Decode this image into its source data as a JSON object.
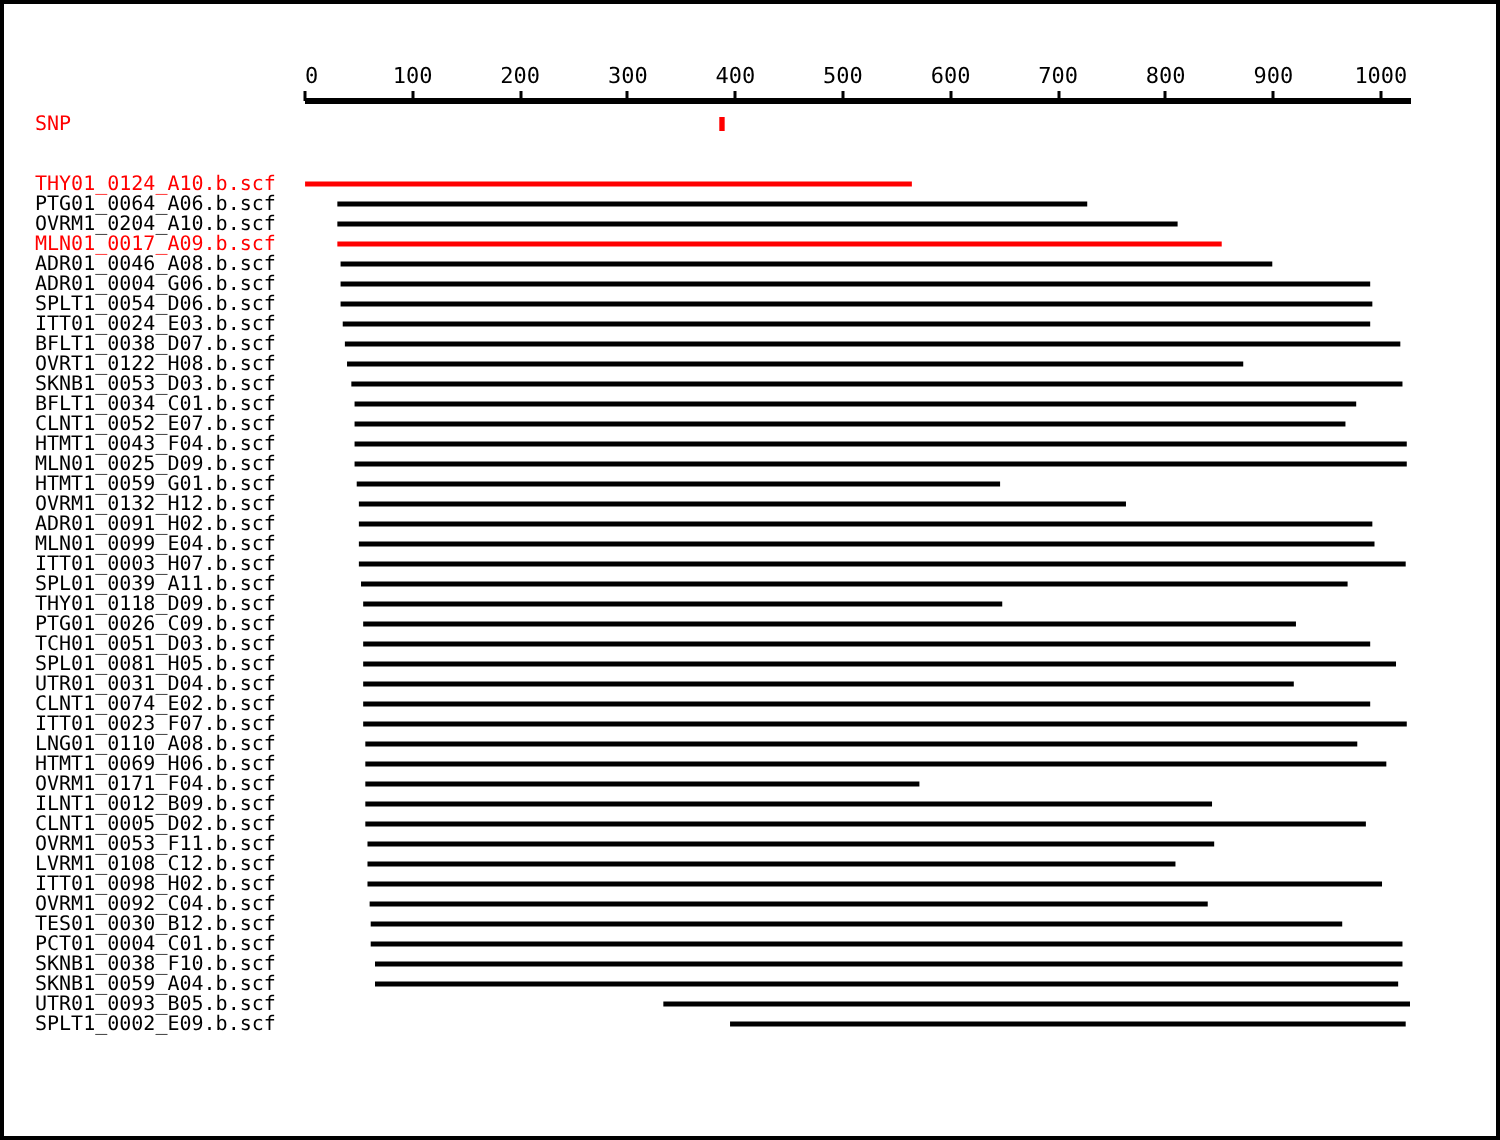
{
  "chart_data": {
    "type": "bar",
    "orientation": "horizontal",
    "categories": [
      "SNP",
      "THY01_0124_A10.b.scf",
      "PTG01_0064_A06.b.scf",
      "OVRM1_0204_A10.b.scf",
      "MLN01_0017_A09.b.scf",
      "ADR01_0046_A08.b.scf",
      "ADR01_0004_G06.b.scf",
      "SPLT1_0054_D06.b.scf",
      "ITT01_0024_E03.b.scf",
      "BFLT1_0038_D07.b.scf",
      "OVRT1_0122_H08.b.scf",
      "SKNB1_0053_D03.b.scf",
      "BFLT1_0034_C01.b.scf",
      "CLNT1_0052_E07.b.scf",
      "HTMT1_0043_F04.b.scf",
      "MLN01_0025_D09.b.scf",
      "HTMT1_0059_G01.b.scf",
      "OVRM1_0132_H12.b.scf",
      "ADR01_0091_H02.b.scf",
      "MLN01_0099_E04.b.scf",
      "ITT01_0003_H07.b.scf",
      "SPL01_0039_A11.b.scf",
      "THY01_0118_D09.b.scf",
      "PTG01_0026_C09.b.scf",
      "TCH01_0051_D03.b.scf",
      "SPL01_0081_H05.b.scf",
      "UTR01_0031_D04.b.scf",
      "CLNT1_0074_E02.b.scf",
      "ITT01_0023_F07.b.scf",
      "LNG01_0110_A08.b.scf",
      "HTMT1_0069_H06.b.scf",
      "OVRM1_0171_F04.b.scf",
      "ILNT1_0012_B09.b.scf",
      "CLNT1_0005_D02.b.scf",
      "OVRM1_0053_F11.b.scf",
      "LVRM1_0108_C12.b.scf",
      "ITT01_0098_H02.b.scf",
      "OVRM1_0092_C04.b.scf",
      "TES01_0030_B12.b.scf",
      "PCT01_0004_C01.b.scf",
      "SKNB1_0038_F10.b.scf",
      "SKNB1_0059_A04.b.scf",
      "UTR01_0093_B05.b.scf",
      "SPLT1_0002_E09.b.scf"
    ],
    "base": [
      386,
      1,
      31,
      31,
      31,
      34,
      34,
      34,
      36,
      38,
      40,
      44,
      47,
      47,
      47,
      47,
      49,
      51,
      51,
      51,
      51,
      53,
      55,
      55,
      55,
      55,
      55,
      55,
      55,
      57,
      57,
      57,
      57,
      57,
      59,
      59,
      59,
      61,
      62,
      62,
      66,
      66,
      334,
      396
    ],
    "values": [
      5,
      564,
      697,
      781,
      822,
      866,
      957,
      959,
      955,
      981,
      833,
      977,
      931,
      921,
      978,
      978,
      598,
      713,
      942,
      944,
      973,
      917,
      594,
      867,
      936,
      960,
      865,
      936,
      970,
      922,
      949,
      515,
      787,
      930,
      787,
      751,
      943,
      779,
      903,
      959,
      955,
      951,
      694,
      628
    ],
    "colors": [
      "#ff0000",
      "#ff0000",
      "#000000",
      "#000000",
      "#ff0000",
      "#000000",
      "#000000",
      "#000000",
      "#000000",
      "#000000",
      "#000000",
      "#000000",
      "#000000",
      "#000000",
      "#000000",
      "#000000",
      "#000000",
      "#000000",
      "#000000",
      "#000000",
      "#000000",
      "#000000",
      "#000000",
      "#000000",
      "#000000",
      "#000000",
      "#000000",
      "#000000",
      "#000000",
      "#000000",
      "#000000",
      "#000000",
      "#000000",
      "#000000",
      "#000000",
      "#000000",
      "#000000",
      "#000000",
      "#000000",
      "#000000",
      "#000000",
      "#000000",
      "#000000",
      "#000000"
    ],
    "xlim": [
      0,
      1028
    ],
    "xticks": [
      0,
      100,
      200,
      300,
      400,
      500,
      600,
      700,
      800,
      900,
      1000
    ],
    "grid": false
  }
}
